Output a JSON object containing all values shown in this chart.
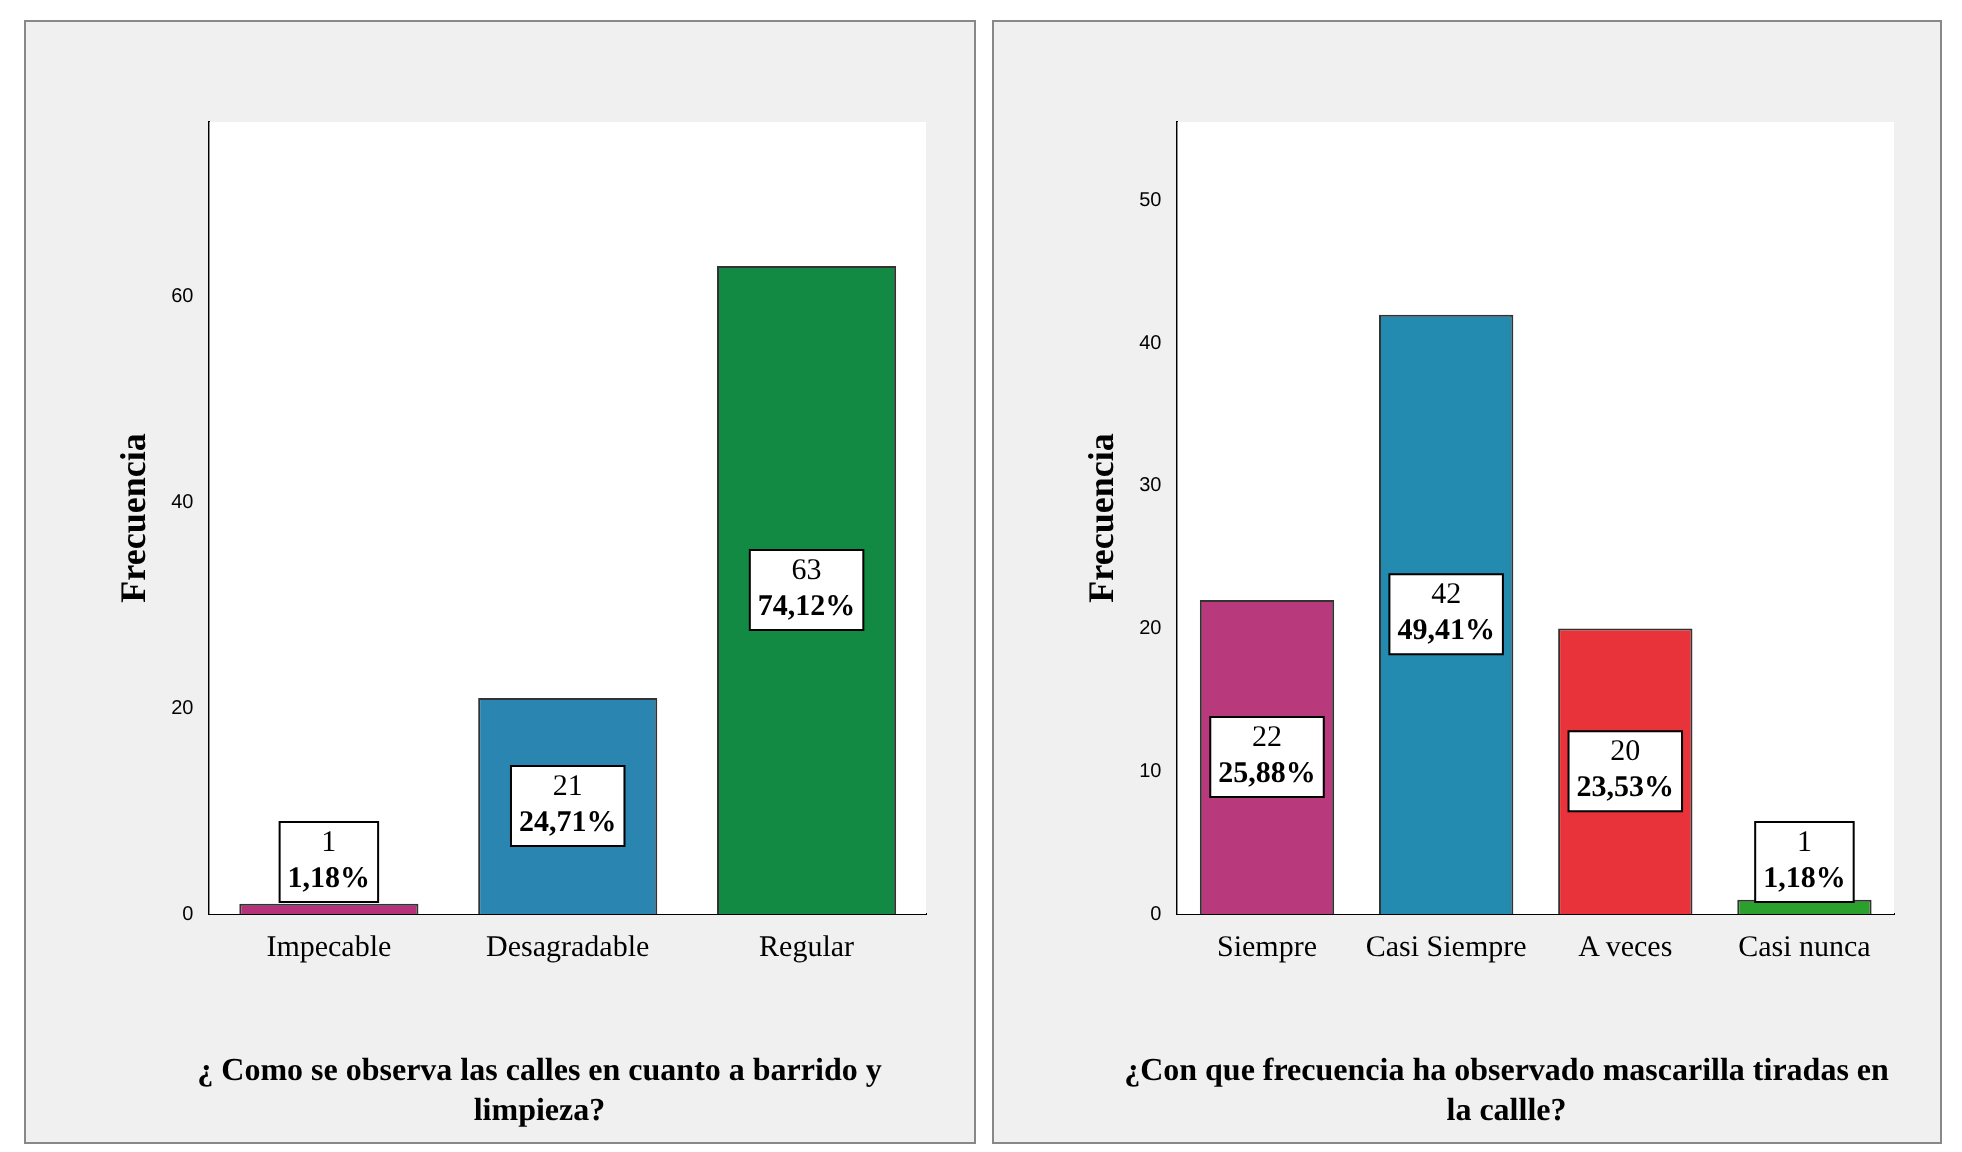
{
  "chart_data": [
    {
      "type": "bar",
      "xlabel": "¿ Como se observa las calles en cuanto a barrido y limpieza?",
      "ylabel": "Frecuencia",
      "categories": [
        "Impecable",
        "Desagradable",
        "Regular"
      ],
      "values": [
        1,
        21,
        63
      ],
      "colors": [
        "#b5327a",
        "#2a86b0",
        "#138a44"
      ],
      "value_labels": [
        "1\n1,18%",
        "21\n24,71%",
        "63\n74,12%"
      ],
      "ylim": [
        0,
        77
      ],
      "yticks": [
        0,
        20,
        40,
        60
      ],
      "grid": false,
      "legend": false
    },
    {
      "type": "bar",
      "xlabel": "¿Con que frecuencia ha observado mascarilla tiradas en la callle?",
      "ylabel": "Frecuencia",
      "categories": [
        "Siempre",
        "Casi Siempre",
        "A veces",
        "Casi nunca"
      ],
      "values": [
        22,
        42,
        20,
        1
      ],
      "colors": [
        "#b83a7c",
        "#238bb0",
        "#e8333a",
        "#2ca02c"
      ],
      "value_labels": [
        "22\n25,88%",
        "42\n49,41%",
        "20\n23,53%",
        "1\n1,18%"
      ],
      "ylim": [
        0,
        55.5
      ],
      "yticks": [
        0,
        10,
        20,
        30,
        40,
        50
      ],
      "grid": false,
      "legend": false
    }
  ]
}
